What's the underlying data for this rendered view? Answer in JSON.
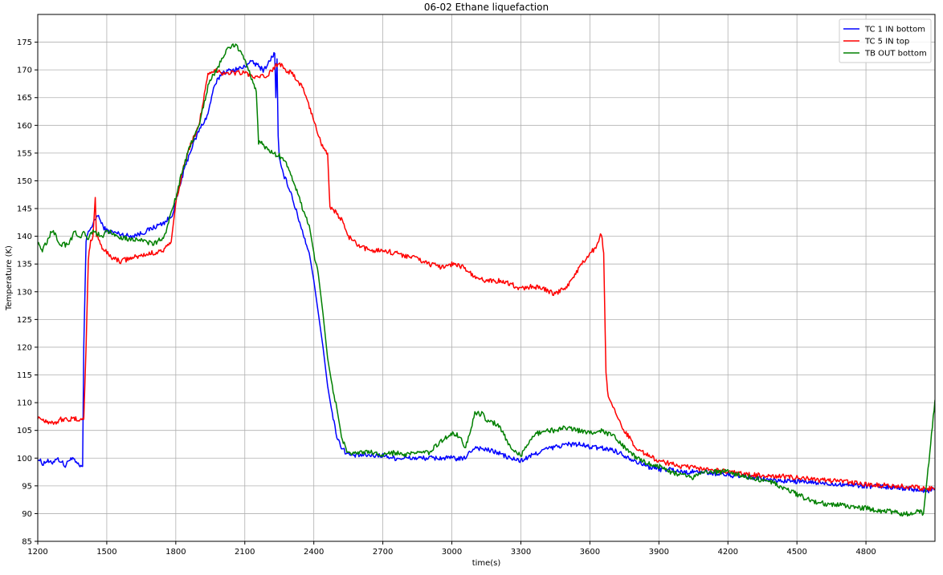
{
  "chart_data": {
    "type": "line",
    "title": "06-02 Ethane liquefaction",
    "xlabel": "time(s)",
    "ylabel": "Temperature (K)",
    "xlim": [
      1200,
      5100
    ],
    "ylim": [
      85,
      180
    ],
    "x_ticks": [
      1200,
      1500,
      1800,
      2100,
      2400,
      2700,
      3000,
      3300,
      3600,
      3900,
      4200,
      4500,
      4800
    ],
    "y_ticks": [
      85,
      90,
      95,
      100,
      105,
      110,
      115,
      120,
      125,
      130,
      135,
      140,
      145,
      150,
      155,
      160,
      165,
      170,
      175
    ],
    "grid": true,
    "legend_position": "top-right",
    "series": [
      {
        "name": "TC 1 IN bottom",
        "color": "#0000ff",
        "x": [
          1200,
          1220,
          1240,
          1260,
          1280,
          1300,
          1320,
          1340,
          1360,
          1380,
          1395,
          1400,
          1410,
          1420,
          1440,
          1460,
          1480,
          1500,
          1550,
          1600,
          1650,
          1700,
          1750,
          1780,
          1800,
          1830,
          1860,
          1900,
          1940,
          1960,
          1980,
          2000,
          2050,
          2100,
          2120,
          2150,
          2180,
          2200,
          2220,
          2230,
          2235,
          2240,
          2245,
          2250,
          2260,
          2280,
          2300,
          2320,
          2350,
          2380,
          2400,
          2420,
          2440,
          2460,
          2480,
          2500,
          2520,
          2540,
          2560,
          2580,
          2600,
          2650,
          2700,
          2750,
          2800,
          2850,
          2900,
          2950,
          3000,
          3050,
          3100,
          3150,
          3200,
          3250,
          3300,
          3350,
          3400,
          3450,
          3500,
          3550,
          3600,
          3650,
          3700,
          3750,
          3800,
          3850,
          3900,
          3950,
          4000,
          4050,
          4100,
          4150,
          4200,
          4300,
          4400,
          4500,
          4600,
          4700,
          4800,
          4900,
          5000,
          5050,
          5080,
          5100
        ],
        "y": [
          100,
          99,
          99.5,
          99,
          100,
          99.5,
          98.5,
          100,
          99.5,
          98.5,
          98.5,
          120,
          139,
          141,
          142,
          144,
          142,
          141,
          140.5,
          140,
          140.5,
          141.5,
          142.5,
          143.5,
          146,
          151,
          155,
          159,
          162,
          166,
          168,
          169.5,
          170,
          170.5,
          171.5,
          171,
          170,
          171,
          172.5,
          173,
          165,
          172,
          158,
          154,
          152,
          150,
          148,
          145,
          141,
          137,
          132,
          126,
          120,
          113,
          108,
          104,
          102,
          101,
          100.5,
          100.5,
          100.5,
          100.5,
          100.5,
          100,
          100,
          100,
          100,
          100,
          100,
          99.8,
          102,
          101.5,
          101,
          100,
          99.5,
          100.5,
          101.5,
          102,
          102.5,
          102.5,
          102,
          101.8,
          101.5,
          100.5,
          99.5,
          98.5,
          98,
          98,
          97.5,
          97.5,
          97.5,
          97.2,
          97,
          96.5,
          96,
          95.8,
          95.5,
          95.3,
          95,
          94.8,
          94.5,
          94,
          94.2,
          94.5
        ]
      },
      {
        "name": "TC 5 IN top",
        "color": "#ff0000",
        "x": [
          1200,
          1220,
          1250,
          1280,
          1300,
          1320,
          1350,
          1380,
          1400,
          1410,
          1420,
          1430,
          1440,
          1450,
          1455,
          1460,
          1480,
          1500,
          1530,
          1560,
          1600,
          1650,
          1700,
          1750,
          1780,
          1800,
          1830,
          1860,
          1900,
          1940,
          1960,
          1980,
          2000,
          2050,
          2100,
          2150,
          2200,
          2220,
          2240,
          2260,
          2280,
          2300,
          2350,
          2400,
          2430,
          2460,
          2470,
          2490,
          2500,
          2520,
          2550,
          2600,
          2650,
          2700,
          2750,
          2800,
          2850,
          2900,
          2950,
          3000,
          3050,
          3100,
          3150,
          3200,
          3250,
          3300,
          3350,
          3400,
          3450,
          3500,
          3550,
          3600,
          3630,
          3650,
          3660,
          3670,
          3680,
          3700,
          3750,
          3800,
          3850,
          3900,
          3950,
          4000,
          4100,
          4200,
          4300,
          4400,
          4500,
          4600,
          4700,
          4800,
          4900,
          5000,
          5050,
          5100
        ],
        "y": [
          107.5,
          107,
          106.5,
          106.5,
          107,
          107,
          107,
          107,
          107,
          120,
          136,
          139,
          140,
          147,
          140,
          140,
          138,
          137,
          136,
          135.5,
          136,
          136.5,
          137,
          137.5,
          139,
          146,
          152,
          156,
          160,
          169,
          169.5,
          170,
          169.5,
          169.5,
          169.5,
          168.5,
          169,
          170,
          171,
          171,
          170,
          169.5,
          167,
          161,
          157,
          155,
          145,
          144.5,
          144,
          143,
          140,
          138,
          137.5,
          137.5,
          137,
          136.5,
          136,
          135,
          134.5,
          135,
          134.5,
          132.5,
          132,
          132,
          131.5,
          130.5,
          131,
          130.5,
          129.5,
          131,
          134,
          137,
          138,
          140.5,
          137,
          115,
          111,
          109,
          105,
          102,
          100.5,
          99.5,
          99,
          98.5,
          98,
          97.5,
          97,
          96.8,
          96.5,
          96,
          95.8,
          95.3,
          95,
          94.8,
          94.5,
          94.5
        ]
      },
      {
        "name": "TB OUT bottom",
        "color": "#008000",
        "x": [
          1200,
          1210,
          1220,
          1240,
          1260,
          1280,
          1300,
          1320,
          1340,
          1360,
          1380,
          1400,
          1420,
          1440,
          1460,
          1480,
          1500,
          1550,
          1600,
          1650,
          1700,
          1720,
          1750,
          1780,
          1800,
          1830,
          1860,
          1900,
          1940,
          1960,
          1980,
          2000,
          2030,
          2060,
          2080,
          2100,
          2120,
          2140,
          2150,
          2160,
          2170,
          2180,
          2200,
          2220,
          2250,
          2280,
          2300,
          2330,
          2350,
          2380,
          2400,
          2420,
          2440,
          2460,
          2480,
          2500,
          2520,
          2540,
          2560,
          2580,
          2600,
          2650,
          2700,
          2750,
          2800,
          2850,
          2900,
          2950,
          3000,
          3030,
          3060,
          3100,
          3130,
          3150,
          3200,
          3230,
          3260,
          3300,
          3350,
          3400,
          3450,
          3500,
          3550,
          3600,
          3650,
          3700,
          3750,
          3800,
          3850,
          3900,
          3950,
          4000,
          4050,
          4100,
          4150,
          4200,
          4250,
          4300,
          4350,
          4400,
          4450,
          4500,
          4550,
          4600,
          4650,
          4700,
          4750,
          4800,
          4850,
          4900,
          4950,
          5000,
          5030,
          5050,
          5070,
          5100
        ],
        "y": [
          139,
          138,
          137.5,
          139,
          141,
          140,
          138.5,
          138.5,
          139,
          141,
          139.5,
          140.5,
          139.5,
          141,
          140.5,
          139.5,
          141,
          140,
          139.5,
          139.5,
          138.5,
          139,
          140,
          144,
          147,
          152,
          156,
          160,
          167,
          169,
          170,
          172,
          174,
          174.5,
          173.5,
          172,
          169.5,
          167,
          166,
          157,
          157,
          156.5,
          155.5,
          155,
          154.5,
          153,
          151,
          148,
          145,
          142,
          137,
          133,
          126,
          118,
          113,
          109,
          104,
          101.5,
          101,
          101,
          101,
          101,
          100.5,
          101,
          100.5,
          101,
          101,
          103,
          104.5,
          104,
          102,
          108,
          108,
          107,
          106,
          104,
          101.5,
          100.5,
          104,
          105,
          105,
          105.5,
          105,
          104.5,
          105,
          104,
          102,
          100,
          99,
          98.5,
          97.5,
          97,
          96.5,
          97.5,
          97.5,
          97.5,
          97,
          96.5,
          96,
          95.5,
          94.5,
          93.5,
          92.5,
          92,
          91.5,
          91.5,
          91,
          91,
          90.5,
          90.5,
          90,
          90,
          90.5,
          90,
          98,
          110.5
        ]
      }
    ]
  }
}
